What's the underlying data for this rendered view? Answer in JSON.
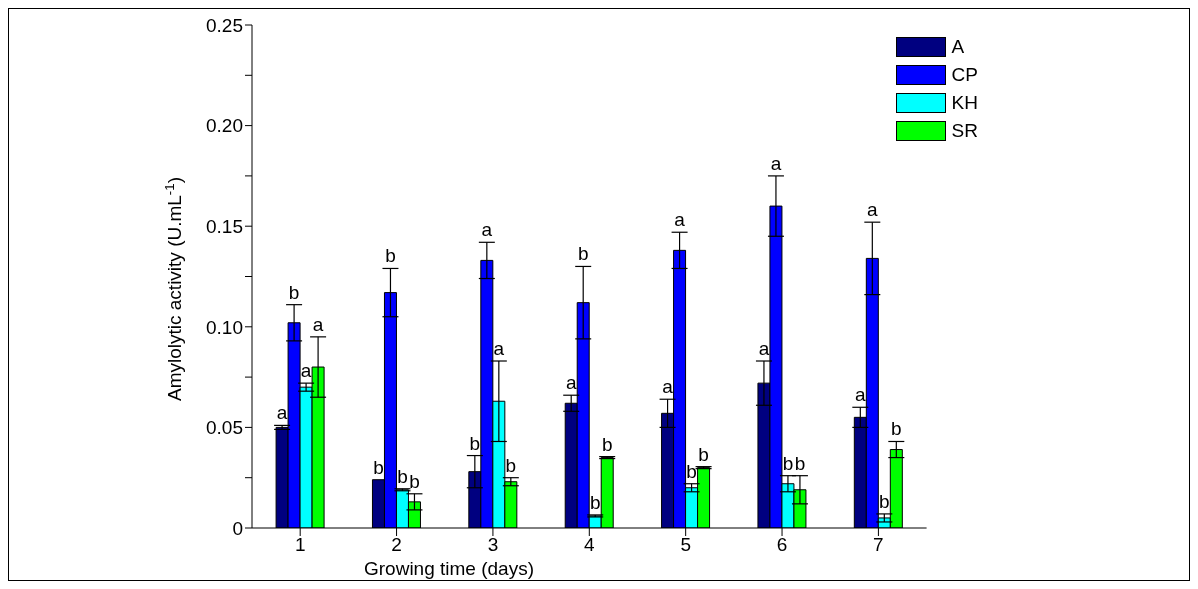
{
  "chart_data": {
    "type": "bar",
    "xlabel": "Growing time (days)",
    "ylabel": "Amylolytic activity (U.mL$^{-1}$)",
    "categories": [
      "1",
      "2",
      "3",
      "4",
      "5",
      "6",
      "7"
    ],
    "series": [
      {
        "name": "A",
        "color": "#000080",
        "values": [
          0.05,
          0.024,
          0.028,
          0.062,
          0.057,
          0.072,
          0.055
        ],
        "errors": [
          0.001,
          null,
          0.008,
          0.004,
          0.007,
          0.011,
          0.005
        ],
        "value_labels": [
          "a",
          "b",
          "b",
          "a",
          "a",
          "a",
          "a"
        ]
      },
      {
        "name": "CP",
        "color": "#0000ff",
        "values": [
          0.102,
          0.117,
          0.133,
          0.112,
          0.138,
          0.16,
          0.134
        ],
        "errors": [
          0.009,
          0.012,
          0.009,
          0.018,
          0.009,
          0.015,
          0.018
        ],
        "value_labels": [
          "b",
          "b",
          "a",
          "b",
          "a",
          "a",
          "a"
        ]
      },
      {
        "name": "KH",
        "color": "#00ffff",
        "values": [
          0.07,
          0.019,
          0.063,
          0.006,
          0.02,
          0.022,
          0.005
        ],
        "errors": [
          0.002,
          0.0005,
          0.02,
          0.0005,
          0.002,
          0.004,
          0.002
        ],
        "value_labels": [
          "a",
          "b",
          "a",
          "b",
          "b",
          "b",
          "b"
        ]
      },
      {
        "name": "SR",
        "color": "#00ff00",
        "values": [
          0.08,
          0.013,
          0.023,
          0.035,
          0.03,
          0.019,
          0.039
        ],
        "errors": [
          0.015,
          0.004,
          0.002,
          0.0005,
          0.0005,
          0.007,
          0.004
        ],
        "value_labels": [
          "a",
          "b",
          "b",
          "b",
          "b",
          "b",
          "b"
        ]
      }
    ],
    "ylim": [
      0,
      0.25
    ],
    "yticks": [
      {
        "value": 0,
        "label": "0"
      },
      {
        "value": 0.025,
        "label": null
      },
      {
        "value": 0.05,
        "label": "0.05"
      },
      {
        "value": 0.075,
        "label": null
      },
      {
        "value": 0.1,
        "label": "0.10"
      },
      {
        "value": 0.125,
        "label": null
      },
      {
        "value": 0.15,
        "label": "0.15"
      },
      {
        "value": 0.175,
        "label": null
      },
      {
        "value": 0.2,
        "label": "0.20"
      },
      {
        "value": 0.225,
        "label": null
      },
      {
        "value": 0.25,
        "label": "0.25"
      }
    ],
    "grid": false,
    "legend": "top right"
  }
}
